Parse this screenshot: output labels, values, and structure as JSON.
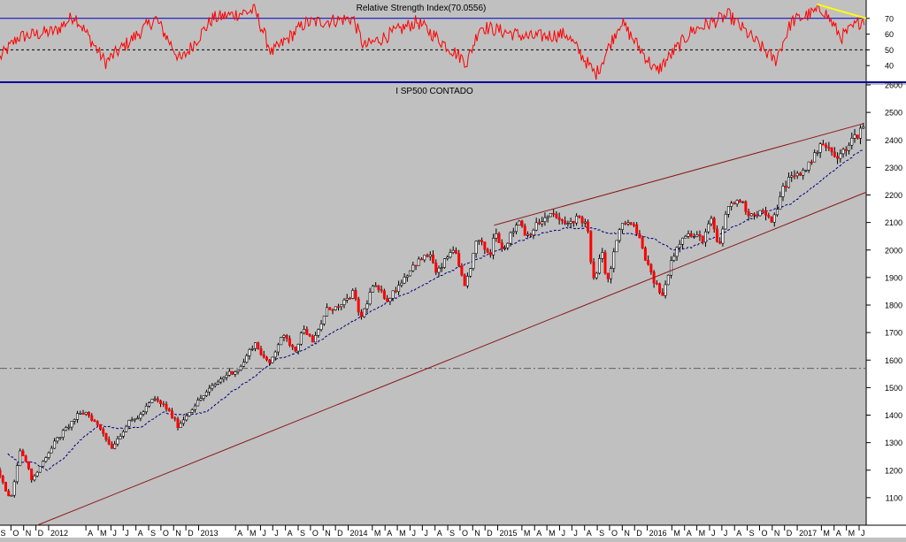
{
  "colors": {
    "background": "#c0c0c0",
    "axis_panel": "#ffffff",
    "rsi_line": "#ff0000",
    "rsi_level_line": "#0000c0",
    "rsi_mid_line": "#000000",
    "rsi_trend": "#ffff00",
    "candle_up_fill": "#ffffff",
    "candle_down_fill": "#ff0000",
    "candle_outline": "#000000",
    "moving_average": "#000080",
    "trendline": "#8b1a1a",
    "support_level": "#606060",
    "separator": "#0000a0"
  },
  "chart_data": [
    {
      "type": "line",
      "title": "Relative Strength Index(70.0556)",
      "indicator": "RSI",
      "last_value": 70.0556,
      "ylim": [
        30,
        80
      ],
      "yticks": [
        "70",
        "60",
        "50",
        "40"
      ],
      "levels": [
        70,
        50
      ],
      "x_range": [
        "2011-09-01",
        "2017-06-15"
      ],
      "series": [
        {
          "values_key_points": [
            {
              "x": "2011-09-01",
              "y": 45
            },
            {
              "x": "2011-10-15",
              "y": 58
            },
            {
              "x": "2012-01-15",
              "y": 62
            },
            {
              "x": "2012-03-01",
              "y": 72
            },
            {
              "x": "2012-05-15",
              "y": 42
            },
            {
              "x": "2012-09-15",
              "y": 70
            },
            {
              "x": "2012-11-15",
              "y": 43
            },
            {
              "x": "2013-02-01",
              "y": 70
            },
            {
              "x": "2013-05-15",
              "y": 75
            },
            {
              "x": "2013-06-25",
              "y": 48
            },
            {
              "x": "2013-09-15",
              "y": 67
            },
            {
              "x": "2014-01-10",
              "y": 70
            },
            {
              "x": "2014-02-05",
              "y": 52
            },
            {
              "x": "2014-06-15",
              "y": 68
            },
            {
              "x": "2014-10-15",
              "y": 42
            },
            {
              "x": "2014-11-15",
              "y": 65
            },
            {
              "x": "2015-03-15",
              "y": 58
            },
            {
              "x": "2015-06-15",
              "y": 60
            },
            {
              "x": "2015-08-25",
              "y": 34
            },
            {
              "x": "2015-10-25",
              "y": 68
            },
            {
              "x": "2016-01-20",
              "y": 36
            },
            {
              "x": "2016-04-15",
              "y": 62
            },
            {
              "x": "2016-07-15",
              "y": 72
            },
            {
              "x": "2016-11-05",
              "y": 43
            },
            {
              "x": "2016-12-15",
              "y": 68
            },
            {
              "x": "2017-03-01",
              "y": 76
            },
            {
              "x": "2017-04-15",
              "y": 58
            },
            {
              "x": "2017-06-10",
              "y": 70
            }
          ]
        }
      ],
      "annotations": [
        {
          "type": "trendline",
          "from": {
            "x": "2017-02-15",
            "y": 79
          },
          "to": {
            "x": "2017-06-15",
            "y": 70
          }
        }
      ]
    },
    {
      "type": "candlestick",
      "title": "I SP500 CONTADO",
      "ylim": [
        1000,
        2600
      ],
      "yticks": [
        "2600",
        "2500",
        "2400",
        "2300",
        "2200",
        "2100",
        "2000",
        "1900",
        "1800",
        "1700",
        "1600",
        "1500",
        "1400",
        "1300",
        "1200",
        "1100"
      ],
      "x_range": [
        "2011-09-01",
        "2017-06-15"
      ],
      "xticks": [
        {
          "x": "2011-09-15",
          "label": "S"
        },
        {
          "x": "2011-10-15",
          "label": "O"
        },
        {
          "x": "2011-11-15",
          "label": "N"
        },
        {
          "x": "2011-12-15",
          "label": "D"
        },
        {
          "x": "2012-01-15",
          "label": "2012"
        },
        {
          "x": "2012-04-15",
          "label": "A"
        },
        {
          "x": "2012-05-15",
          "label": "M"
        },
        {
          "x": "2012-06-15",
          "label": "J"
        },
        {
          "x": "2012-07-15",
          "label": "J"
        },
        {
          "x": "2012-08-15",
          "label": "A"
        },
        {
          "x": "2012-09-15",
          "label": "S"
        },
        {
          "x": "2012-10-15",
          "label": "O"
        },
        {
          "x": "2012-11-15",
          "label": "N"
        },
        {
          "x": "2012-12-15",
          "label": "D"
        },
        {
          "x": "2013-01-15",
          "label": "2013"
        },
        {
          "x": "2013-04-15",
          "label": "A"
        },
        {
          "x": "2013-05-15",
          "label": "M"
        },
        {
          "x": "2013-06-15",
          "label": "J"
        },
        {
          "x": "2013-07-15",
          "label": "J"
        },
        {
          "x": "2013-08-15",
          "label": "A"
        },
        {
          "x": "2013-09-15",
          "label": "S"
        },
        {
          "x": "2013-10-15",
          "label": "O"
        },
        {
          "x": "2013-11-15",
          "label": "N"
        },
        {
          "x": "2013-12-15",
          "label": "D"
        },
        {
          "x": "2014-01-15",
          "label": "2014"
        },
        {
          "x": "2014-03-15",
          "label": "M"
        },
        {
          "x": "2014-04-15",
          "label": "A"
        },
        {
          "x": "2014-05-15",
          "label": "M"
        },
        {
          "x": "2014-06-15",
          "label": "J"
        },
        {
          "x": "2014-07-15",
          "label": "J"
        },
        {
          "x": "2014-08-15",
          "label": "A"
        },
        {
          "x": "2014-09-15",
          "label": "S"
        },
        {
          "x": "2014-10-15",
          "label": "O"
        },
        {
          "x": "2014-11-15",
          "label": "N"
        },
        {
          "x": "2014-12-15",
          "label": "D"
        },
        {
          "x": "2015-01-15",
          "label": "2015"
        },
        {
          "x": "2015-03-15",
          "label": "M"
        },
        {
          "x": "2015-04-15",
          "label": "A"
        },
        {
          "x": "2015-05-15",
          "label": "M"
        },
        {
          "x": "2015-06-15",
          "label": "J"
        },
        {
          "x": "2015-07-15",
          "label": "J"
        },
        {
          "x": "2015-08-15",
          "label": "A"
        },
        {
          "x": "2015-09-15",
          "label": "S"
        },
        {
          "x": "2015-10-15",
          "label": "O"
        },
        {
          "x": "2015-11-15",
          "label": "N"
        },
        {
          "x": "2015-12-15",
          "label": "D"
        },
        {
          "x": "2016-01-15",
          "label": "2016"
        },
        {
          "x": "2016-03-15",
          "label": "M"
        },
        {
          "x": "2016-04-15",
          "label": "A"
        },
        {
          "x": "2016-05-15",
          "label": "M"
        },
        {
          "x": "2016-06-15",
          "label": "J"
        },
        {
          "x": "2016-07-15",
          "label": "J"
        },
        {
          "x": "2016-08-15",
          "label": "A"
        },
        {
          "x": "2016-09-15",
          "label": "S"
        },
        {
          "x": "2016-10-15",
          "label": "O"
        },
        {
          "x": "2016-11-15",
          "label": "N"
        },
        {
          "x": "2016-12-15",
          "label": "D"
        },
        {
          "x": "2017-01-15",
          "label": "2017"
        },
        {
          "x": "2017-03-15",
          "label": "M"
        },
        {
          "x": "2017-04-15",
          "label": "A"
        },
        {
          "x": "2017-05-15",
          "label": "M"
        },
        {
          "x": "2017-06-15",
          "label": "J"
        }
      ],
      "price_key_points": [
        {
          "x": "2011-09-01",
          "y": 1200
        },
        {
          "x": "2011-09-20",
          "y": 1130
        },
        {
          "x": "2011-10-04",
          "y": 1100
        },
        {
          "x": "2011-10-27",
          "y": 1285
        },
        {
          "x": "2011-11-25",
          "y": 1160
        },
        {
          "x": "2011-12-20",
          "y": 1230
        },
        {
          "x": "2012-01-15",
          "y": 1295
        },
        {
          "x": "2012-02-15",
          "y": 1350
        },
        {
          "x": "2012-03-15",
          "y": 1400
        },
        {
          "x": "2012-04-05",
          "y": 1410
        },
        {
          "x": "2012-05-15",
          "y": 1340
        },
        {
          "x": "2012-06-04",
          "y": 1280
        },
        {
          "x": "2012-07-15",
          "y": 1370
        },
        {
          "x": "2012-08-15",
          "y": 1400
        },
        {
          "x": "2012-09-15",
          "y": 1460
        },
        {
          "x": "2012-10-15",
          "y": 1430
        },
        {
          "x": "2012-11-15",
          "y": 1360
        },
        {
          "x": "2012-12-15",
          "y": 1420
        },
        {
          "x": "2013-01-15",
          "y": 1470
        },
        {
          "x": "2013-02-15",
          "y": 1515
        },
        {
          "x": "2013-03-15",
          "y": 1550
        },
        {
          "x": "2013-04-15",
          "y": 1570
        },
        {
          "x": "2013-05-20",
          "y": 1665
        },
        {
          "x": "2013-06-24",
          "y": 1580
        },
        {
          "x": "2013-07-25",
          "y": 1690
        },
        {
          "x": "2013-08-28",
          "y": 1640
        },
        {
          "x": "2013-09-18",
          "y": 1720
        },
        {
          "x": "2013-10-09",
          "y": 1660
        },
        {
          "x": "2013-11-15",
          "y": 1790
        },
        {
          "x": "2013-12-15",
          "y": 1790
        },
        {
          "x": "2014-01-15",
          "y": 1845
        },
        {
          "x": "2014-02-04",
          "y": 1750
        },
        {
          "x": "2014-03-05",
          "y": 1870
        },
        {
          "x": "2014-04-11",
          "y": 1820
        },
        {
          "x": "2014-05-15",
          "y": 1890
        },
        {
          "x": "2014-06-15",
          "y": 1950
        },
        {
          "x": "2014-07-23",
          "y": 1985
        },
        {
          "x": "2014-08-07",
          "y": 1910
        },
        {
          "x": "2014-09-18",
          "y": 2010
        },
        {
          "x": "2014-10-15",
          "y": 1860
        },
        {
          "x": "2014-11-15",
          "y": 2040
        },
        {
          "x": "2014-12-16",
          "y": 1980
        },
        {
          "x": "2014-12-29",
          "y": 2080
        },
        {
          "x": "2015-01-15",
          "y": 2000
        },
        {
          "x": "2015-02-25",
          "y": 2110
        },
        {
          "x": "2015-03-15",
          "y": 2050
        },
        {
          "x": "2015-04-15",
          "y": 2100
        },
        {
          "x": "2015-05-20",
          "y": 2130
        },
        {
          "x": "2015-06-15",
          "y": 2090
        },
        {
          "x": "2015-07-20",
          "y": 2120
        },
        {
          "x": "2015-08-10",
          "y": 2090
        },
        {
          "x": "2015-08-24",
          "y": 1880
        },
        {
          "x": "2015-09-15",
          "y": 1990
        },
        {
          "x": "2015-09-29",
          "y": 1880
        },
        {
          "x": "2015-10-20",
          "y": 2030
        },
        {
          "x": "2015-11-05",
          "y": 2100
        },
        {
          "x": "2015-12-01",
          "y": 2090
        },
        {
          "x": "2015-12-15",
          "y": 2040
        },
        {
          "x": "2016-01-15",
          "y": 1900
        },
        {
          "x": "2016-02-11",
          "y": 1830
        },
        {
          "x": "2016-03-01",
          "y": 1960
        },
        {
          "x": "2016-04-01",
          "y": 2060
        },
        {
          "x": "2016-05-19",
          "y": 2040
        },
        {
          "x": "2016-06-08",
          "y": 2110
        },
        {
          "x": "2016-06-27",
          "y": 2000
        },
        {
          "x": "2016-07-15",
          "y": 2150
        },
        {
          "x": "2016-08-15",
          "y": 2185
        },
        {
          "x": "2016-09-09",
          "y": 2130
        },
        {
          "x": "2016-10-15",
          "y": 2140
        },
        {
          "x": "2016-11-04",
          "y": 2090
        },
        {
          "x": "2016-11-25",
          "y": 2210
        },
        {
          "x": "2016-12-15",
          "y": 2260
        },
        {
          "x": "2017-01-15",
          "y": 2280
        },
        {
          "x": "2017-02-15",
          "y": 2340
        },
        {
          "x": "2017-03-01",
          "y": 2395
        },
        {
          "x": "2017-04-13",
          "y": 2330
        },
        {
          "x": "2017-05-15",
          "y": 2400
        },
        {
          "x": "2017-06-01",
          "y": 2420
        },
        {
          "x": "2017-06-08",
          "y": 2445
        }
      ],
      "moving_average_key_points": [
        {
          "x": "2011-09-20",
          "y": 1260
        },
        {
          "x": "2011-10-15",
          "y": 1230
        },
        {
          "x": "2011-11-20",
          "y": 1230
        },
        {
          "x": "2011-12-25",
          "y": 1200
        },
        {
          "x": "2012-02-01",
          "y": 1240
        },
        {
          "x": "2012-03-15",
          "y": 1310
        },
        {
          "x": "2012-05-01",
          "y": 1365
        },
        {
          "x": "2012-06-15",
          "y": 1350
        },
        {
          "x": "2012-08-15",
          "y": 1360
        },
        {
          "x": "2012-10-01",
          "y": 1410
        },
        {
          "x": "2012-11-20",
          "y": 1400
        },
        {
          "x": "2013-01-15",
          "y": 1410
        },
        {
          "x": "2013-03-15",
          "y": 1480
        },
        {
          "x": "2013-05-15",
          "y": 1540
        },
        {
          "x": "2013-07-01",
          "y": 1600
        },
        {
          "x": "2013-09-01",
          "y": 1630
        },
        {
          "x": "2013-10-15",
          "y": 1665
        },
        {
          "x": "2013-12-15",
          "y": 1720
        },
        {
          "x": "2014-02-15",
          "y": 1770
        },
        {
          "x": "2014-04-15",
          "y": 1820
        },
        {
          "x": "2014-06-15",
          "y": 1860
        },
        {
          "x": "2014-08-15",
          "y": 1910
        },
        {
          "x": "2014-10-15",
          "y": 1950
        },
        {
          "x": "2014-12-15",
          "y": 1990
        },
        {
          "x": "2015-02-15",
          "y": 2030
        },
        {
          "x": "2015-04-15",
          "y": 2060
        },
        {
          "x": "2015-06-15",
          "y": 2080
        },
        {
          "x": "2015-08-15",
          "y": 2080
        },
        {
          "x": "2015-09-30",
          "y": 2060
        },
        {
          "x": "2015-11-15",
          "y": 2060
        },
        {
          "x": "2016-01-15",
          "y": 2040
        },
        {
          "x": "2016-03-01",
          "y": 2000
        },
        {
          "x": "2016-04-15",
          "y": 2010
        },
        {
          "x": "2016-06-15",
          "y": 2050
        },
        {
          "x": "2016-08-15",
          "y": 2100
        },
        {
          "x": "2016-10-15",
          "y": 2140
        },
        {
          "x": "2016-12-15",
          "y": 2170
        },
        {
          "x": "2017-02-15",
          "y": 2240
        },
        {
          "x": "2017-04-15",
          "y": 2310
        },
        {
          "x": "2017-06-10",
          "y": 2370
        }
      ],
      "trendlines": [
        {
          "name": "upper",
          "from": {
            "x": "2014-12-20",
            "y": 2090
          },
          "to": {
            "x": "2017-06-10",
            "y": 2460
          }
        },
        {
          "name": "lower",
          "from": {
            "x": "2011-12-01",
            "y": 1000
          },
          "to": {
            "x": "2017-06-15",
            "y": 2210
          }
        }
      ],
      "horizontal_levels": [
        1570
      ]
    }
  ]
}
